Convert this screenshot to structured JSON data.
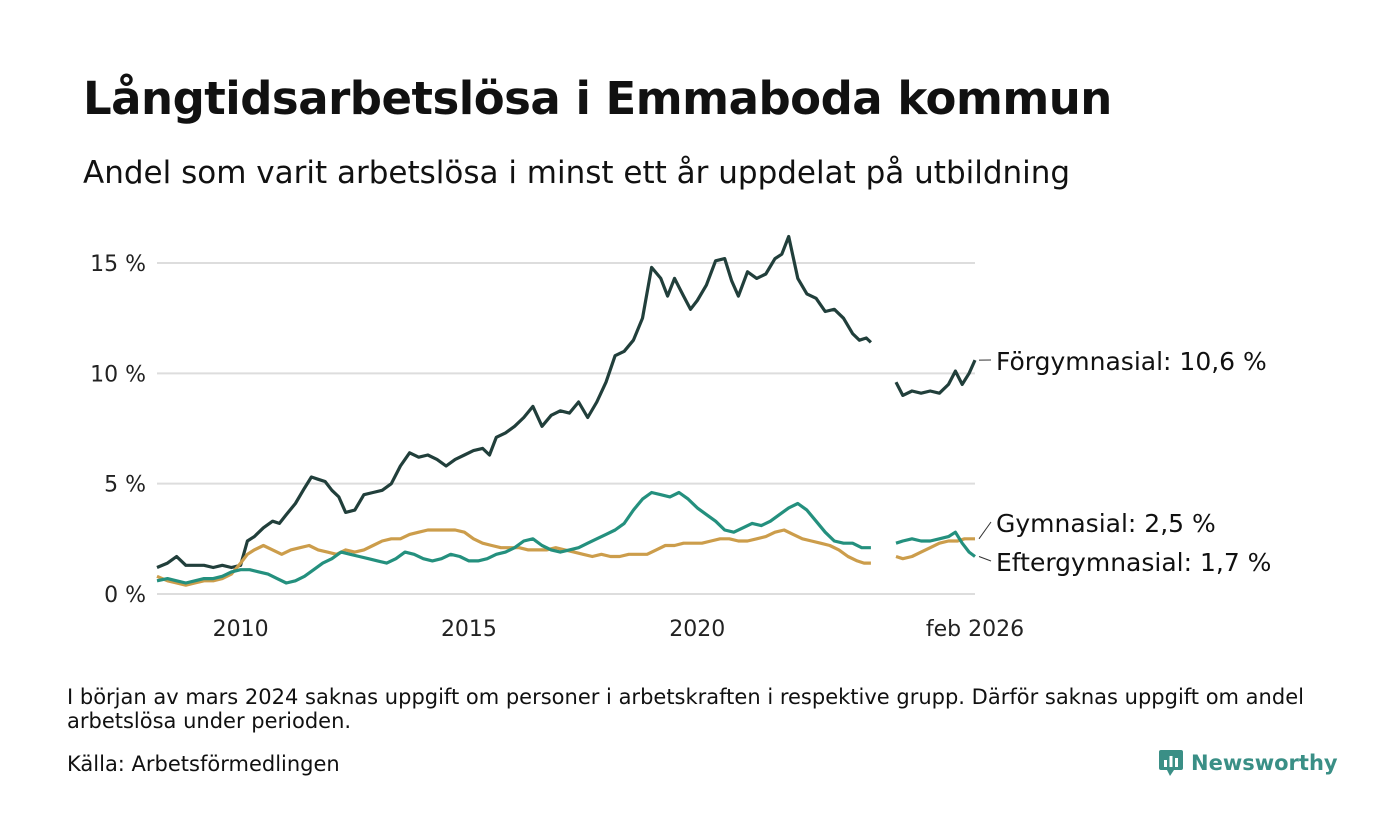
{
  "title": "Långtidsarbetslösa i Emmaboda kommun",
  "subtitle": "Andel som varit arbetslösa i minst ett år uppdelat på utbildning",
  "footnote": "I början av mars 2024 saknas uppgift om personer i arbetskraften i respektive grupp. Därför saknas uppgift om andel arbetslösa under perioden.",
  "source": "Källa: Arbetsförmedlingen",
  "logo": {
    "text": "Newsworthy",
    "icon": "newsworthy-logo-icon",
    "color": "#3a8f86"
  },
  "chart_data": {
    "type": "line",
    "title": "Långtidsarbetslösa i Emmaboda kommun",
    "xlabel": "",
    "ylabel": "",
    "xlim": [
      2008.17,
      2026.08
    ],
    "ylim": [
      0,
      16.5
    ],
    "grid": true,
    "y_ticks": [
      {
        "value": 0,
        "label": "0 %"
      },
      {
        "value": 5,
        "label": "5 %"
      },
      {
        "value": 10,
        "label": "10 %"
      },
      {
        "value": 15,
        "label": "15 %"
      }
    ],
    "x_ticks": [
      {
        "value": 2010,
        "label": "2010"
      },
      {
        "value": 2015,
        "label": "2015"
      },
      {
        "value": 2020,
        "label": "2020"
      },
      {
        "value": 2026.08,
        "label": "feb 2026"
      }
    ],
    "gap": [
      2023.8,
      2024.35
    ],
    "series": [
      {
        "name": "Förgymnasial",
        "label": "Förgymnasial: 10,6 %",
        "color": "#213f3b",
        "points": [
          [
            2008.17,
            1.2
          ],
          [
            2008.4,
            1.4
          ],
          [
            2008.6,
            1.7
          ],
          [
            2008.8,
            1.3
          ],
          [
            2009.0,
            1.3
          ],
          [
            2009.2,
            1.3
          ],
          [
            2009.4,
            1.2
          ],
          [
            2009.6,
            1.3
          ],
          [
            2009.8,
            1.2
          ],
          [
            2010.0,
            1.3
          ],
          [
            2010.15,
            2.4
          ],
          [
            2010.3,
            2.6
          ],
          [
            2010.5,
            3.0
          ],
          [
            2010.7,
            3.3
          ],
          [
            2010.85,
            3.2
          ],
          [
            2011.0,
            3.6
          ],
          [
            2011.2,
            4.1
          ],
          [
            2011.4,
            4.8
          ],
          [
            2011.55,
            5.3
          ],
          [
            2011.7,
            5.2
          ],
          [
            2011.85,
            5.1
          ],
          [
            2012.0,
            4.7
          ],
          [
            2012.15,
            4.4
          ],
          [
            2012.3,
            3.7
          ],
          [
            2012.5,
            3.8
          ],
          [
            2012.7,
            4.5
          ],
          [
            2012.9,
            4.6
          ],
          [
            2013.1,
            4.7
          ],
          [
            2013.3,
            5.0
          ],
          [
            2013.5,
            5.8
          ],
          [
            2013.7,
            6.4
          ],
          [
            2013.9,
            6.2
          ],
          [
            2014.1,
            6.3
          ],
          [
            2014.3,
            6.1
          ],
          [
            2014.5,
            5.8
          ],
          [
            2014.7,
            6.1
          ],
          [
            2014.9,
            6.3
          ],
          [
            2015.1,
            6.5
          ],
          [
            2015.3,
            6.6
          ],
          [
            2015.45,
            6.3
          ],
          [
            2015.6,
            7.1
          ],
          [
            2015.8,
            7.3
          ],
          [
            2016.0,
            7.6
          ],
          [
            2016.2,
            8.0
          ],
          [
            2016.4,
            8.5
          ],
          [
            2016.6,
            7.6
          ],
          [
            2016.8,
            8.1
          ],
          [
            2017.0,
            8.3
          ],
          [
            2017.2,
            8.2
          ],
          [
            2017.4,
            8.7
          ],
          [
            2017.6,
            8.0
          ],
          [
            2017.8,
            8.7
          ],
          [
            2018.0,
            9.6
          ],
          [
            2018.2,
            10.8
          ],
          [
            2018.4,
            11.0
          ],
          [
            2018.6,
            11.5
          ],
          [
            2018.8,
            12.5
          ],
          [
            2019.0,
            14.8
          ],
          [
            2019.2,
            14.3
          ],
          [
            2019.35,
            13.5
          ],
          [
            2019.5,
            14.3
          ],
          [
            2019.7,
            13.5
          ],
          [
            2019.85,
            12.9
          ],
          [
            2020.0,
            13.3
          ],
          [
            2020.2,
            14.0
          ],
          [
            2020.4,
            15.1
          ],
          [
            2020.6,
            15.2
          ],
          [
            2020.75,
            14.2
          ],
          [
            2020.9,
            13.5
          ],
          [
            2021.1,
            14.6
          ],
          [
            2021.3,
            14.3
          ],
          [
            2021.5,
            14.5
          ],
          [
            2021.7,
            15.2
          ],
          [
            2021.85,
            15.4
          ],
          [
            2022.0,
            16.2
          ],
          [
            2022.2,
            14.3
          ],
          [
            2022.4,
            13.6
          ],
          [
            2022.6,
            13.4
          ],
          [
            2022.8,
            12.8
          ],
          [
            2023.0,
            12.9
          ],
          [
            2023.2,
            12.5
          ],
          [
            2023.4,
            11.8
          ],
          [
            2023.55,
            11.5
          ],
          [
            2023.7,
            11.6
          ],
          [
            2023.8,
            11.4
          ],
          [
            2024.35,
            9.6
          ],
          [
            2024.5,
            9.0
          ],
          [
            2024.7,
            9.2
          ],
          [
            2024.9,
            9.1
          ],
          [
            2025.1,
            9.2
          ],
          [
            2025.3,
            9.1
          ],
          [
            2025.5,
            9.5
          ],
          [
            2025.65,
            10.1
          ],
          [
            2025.8,
            9.5
          ],
          [
            2025.95,
            10.0
          ],
          [
            2026.08,
            10.6
          ]
        ]
      },
      {
        "name": "Gymnasial",
        "label": "Gymnasial:  2,5 %",
        "color": "#cc9d4b",
        "points": [
          [
            2008.17,
            0.8
          ],
          [
            2008.4,
            0.6
          ],
          [
            2008.6,
            0.5
          ],
          [
            2008.8,
            0.4
          ],
          [
            2009.0,
            0.5
          ],
          [
            2009.2,
            0.6
          ],
          [
            2009.4,
            0.6
          ],
          [
            2009.6,
            0.7
          ],
          [
            2009.8,
            0.9
          ],
          [
            2010.0,
            1.4
          ],
          [
            2010.15,
            1.8
          ],
          [
            2010.3,
            2.0
          ],
          [
            2010.5,
            2.2
          ],
          [
            2010.7,
            2.0
          ],
          [
            2010.9,
            1.8
          ],
          [
            2011.1,
            2.0
          ],
          [
            2011.3,
            2.1
          ],
          [
            2011.5,
            2.2
          ],
          [
            2011.7,
            2.0
          ],
          [
            2011.9,
            1.9
          ],
          [
            2012.1,
            1.8
          ],
          [
            2012.3,
            2.0
          ],
          [
            2012.5,
            1.9
          ],
          [
            2012.7,
            2.0
          ],
          [
            2012.9,
            2.2
          ],
          [
            2013.1,
            2.4
          ],
          [
            2013.3,
            2.5
          ],
          [
            2013.5,
            2.5
          ],
          [
            2013.7,
            2.7
          ],
          [
            2013.9,
            2.8
          ],
          [
            2014.1,
            2.9
          ],
          [
            2014.3,
            2.9
          ],
          [
            2014.5,
            2.9
          ],
          [
            2014.7,
            2.9
          ],
          [
            2014.9,
            2.8
          ],
          [
            2015.1,
            2.5
          ],
          [
            2015.3,
            2.3
          ],
          [
            2015.5,
            2.2
          ],
          [
            2015.7,
            2.1
          ],
          [
            2015.9,
            2.1
          ],
          [
            2016.1,
            2.1
          ],
          [
            2016.3,
            2.0
          ],
          [
            2016.5,
            2.0
          ],
          [
            2016.7,
            2.0
          ],
          [
            2016.9,
            2.1
          ],
          [
            2017.1,
            2.0
          ],
          [
            2017.3,
            1.9
          ],
          [
            2017.5,
            1.8
          ],
          [
            2017.7,
            1.7
          ],
          [
            2017.9,
            1.8
          ],
          [
            2018.1,
            1.7
          ],
          [
            2018.3,
            1.7
          ],
          [
            2018.5,
            1.8
          ],
          [
            2018.7,
            1.8
          ],
          [
            2018.9,
            1.8
          ],
          [
            2019.1,
            2.0
          ],
          [
            2019.3,
            2.2
          ],
          [
            2019.5,
            2.2
          ],
          [
            2019.7,
            2.3
          ],
          [
            2019.9,
            2.3
          ],
          [
            2020.1,
            2.3
          ],
          [
            2020.3,
            2.4
          ],
          [
            2020.5,
            2.5
          ],
          [
            2020.7,
            2.5
          ],
          [
            2020.9,
            2.4
          ],
          [
            2021.1,
            2.4
          ],
          [
            2021.3,
            2.5
          ],
          [
            2021.5,
            2.6
          ],
          [
            2021.7,
            2.8
          ],
          [
            2021.9,
            2.9
          ],
          [
            2022.1,
            2.7
          ],
          [
            2022.3,
            2.5
          ],
          [
            2022.5,
            2.4
          ],
          [
            2022.7,
            2.3
          ],
          [
            2022.9,
            2.2
          ],
          [
            2023.1,
            2.0
          ],
          [
            2023.3,
            1.7
          ],
          [
            2023.5,
            1.5
          ],
          [
            2023.65,
            1.4
          ],
          [
            2023.8,
            1.4
          ],
          [
            2024.35,
            1.7
          ],
          [
            2024.5,
            1.6
          ],
          [
            2024.7,
            1.7
          ],
          [
            2024.9,
            1.9
          ],
          [
            2025.1,
            2.1
          ],
          [
            2025.3,
            2.3
          ],
          [
            2025.5,
            2.4
          ],
          [
            2025.7,
            2.4
          ],
          [
            2025.85,
            2.5
          ],
          [
            2026.0,
            2.5
          ],
          [
            2026.08,
            2.5
          ]
        ]
      },
      {
        "name": "Eftergymnasial",
        "label": "Eftergymnasial:  1,7 %",
        "color": "#24907e",
        "points": [
          [
            2008.17,
            0.6
          ],
          [
            2008.4,
            0.7
          ],
          [
            2008.6,
            0.6
          ],
          [
            2008.8,
            0.5
          ],
          [
            2009.0,
            0.6
          ],
          [
            2009.2,
            0.7
          ],
          [
            2009.4,
            0.7
          ],
          [
            2009.6,
            0.8
          ],
          [
            2009.8,
            1.0
          ],
          [
            2010.0,
            1.1
          ],
          [
            2010.2,
            1.1
          ],
          [
            2010.4,
            1.0
          ],
          [
            2010.6,
            0.9
          ],
          [
            2010.8,
            0.7
          ],
          [
            2011.0,
            0.5
          ],
          [
            2011.2,
            0.6
          ],
          [
            2011.4,
            0.8
          ],
          [
            2011.6,
            1.1
          ],
          [
            2011.8,
            1.4
          ],
          [
            2012.0,
            1.6
          ],
          [
            2012.2,
            1.9
          ],
          [
            2012.4,
            1.8
          ],
          [
            2012.6,
            1.7
          ],
          [
            2012.8,
            1.6
          ],
          [
            2013.0,
            1.5
          ],
          [
            2013.2,
            1.4
          ],
          [
            2013.4,
            1.6
          ],
          [
            2013.6,
            1.9
          ],
          [
            2013.8,
            1.8
          ],
          [
            2014.0,
            1.6
          ],
          [
            2014.2,
            1.5
          ],
          [
            2014.4,
            1.6
          ],
          [
            2014.6,
            1.8
          ],
          [
            2014.8,
            1.7
          ],
          [
            2015.0,
            1.5
          ],
          [
            2015.2,
            1.5
          ],
          [
            2015.4,
            1.6
          ],
          [
            2015.6,
            1.8
          ],
          [
            2015.8,
            1.9
          ],
          [
            2016.0,
            2.1
          ],
          [
            2016.2,
            2.4
          ],
          [
            2016.4,
            2.5
          ],
          [
            2016.6,
            2.2
          ],
          [
            2016.8,
            2.0
          ],
          [
            2017.0,
            1.9
          ],
          [
            2017.2,
            2.0
          ],
          [
            2017.4,
            2.1
          ],
          [
            2017.6,
            2.3
          ],
          [
            2017.8,
            2.5
          ],
          [
            2018.0,
            2.7
          ],
          [
            2018.2,
            2.9
          ],
          [
            2018.4,
            3.2
          ],
          [
            2018.6,
            3.8
          ],
          [
            2018.8,
            4.3
          ],
          [
            2019.0,
            4.6
          ],
          [
            2019.2,
            4.5
          ],
          [
            2019.4,
            4.4
          ],
          [
            2019.6,
            4.6
          ],
          [
            2019.8,
            4.3
          ],
          [
            2020.0,
            3.9
          ],
          [
            2020.2,
            3.6
          ],
          [
            2020.4,
            3.3
          ],
          [
            2020.6,
            2.9
          ],
          [
            2020.8,
            2.8
          ],
          [
            2021.0,
            3.0
          ],
          [
            2021.2,
            3.2
          ],
          [
            2021.4,
            3.1
          ],
          [
            2021.6,
            3.3
          ],
          [
            2021.8,
            3.6
          ],
          [
            2022.0,
            3.9
          ],
          [
            2022.2,
            4.1
          ],
          [
            2022.4,
            3.8
          ],
          [
            2022.6,
            3.3
          ],
          [
            2022.8,
            2.8
          ],
          [
            2023.0,
            2.4
          ],
          [
            2023.2,
            2.3
          ],
          [
            2023.4,
            2.3
          ],
          [
            2023.6,
            2.1
          ],
          [
            2023.8,
            2.1
          ],
          [
            2024.35,
            2.3
          ],
          [
            2024.5,
            2.4
          ],
          [
            2024.7,
            2.5
          ],
          [
            2024.9,
            2.4
          ],
          [
            2025.1,
            2.4
          ],
          [
            2025.3,
            2.5
          ],
          [
            2025.5,
            2.6
          ],
          [
            2025.65,
            2.8
          ],
          [
            2025.8,
            2.3
          ],
          [
            2025.95,
            1.9
          ],
          [
            2026.08,
            1.7
          ]
        ]
      }
    ]
  }
}
